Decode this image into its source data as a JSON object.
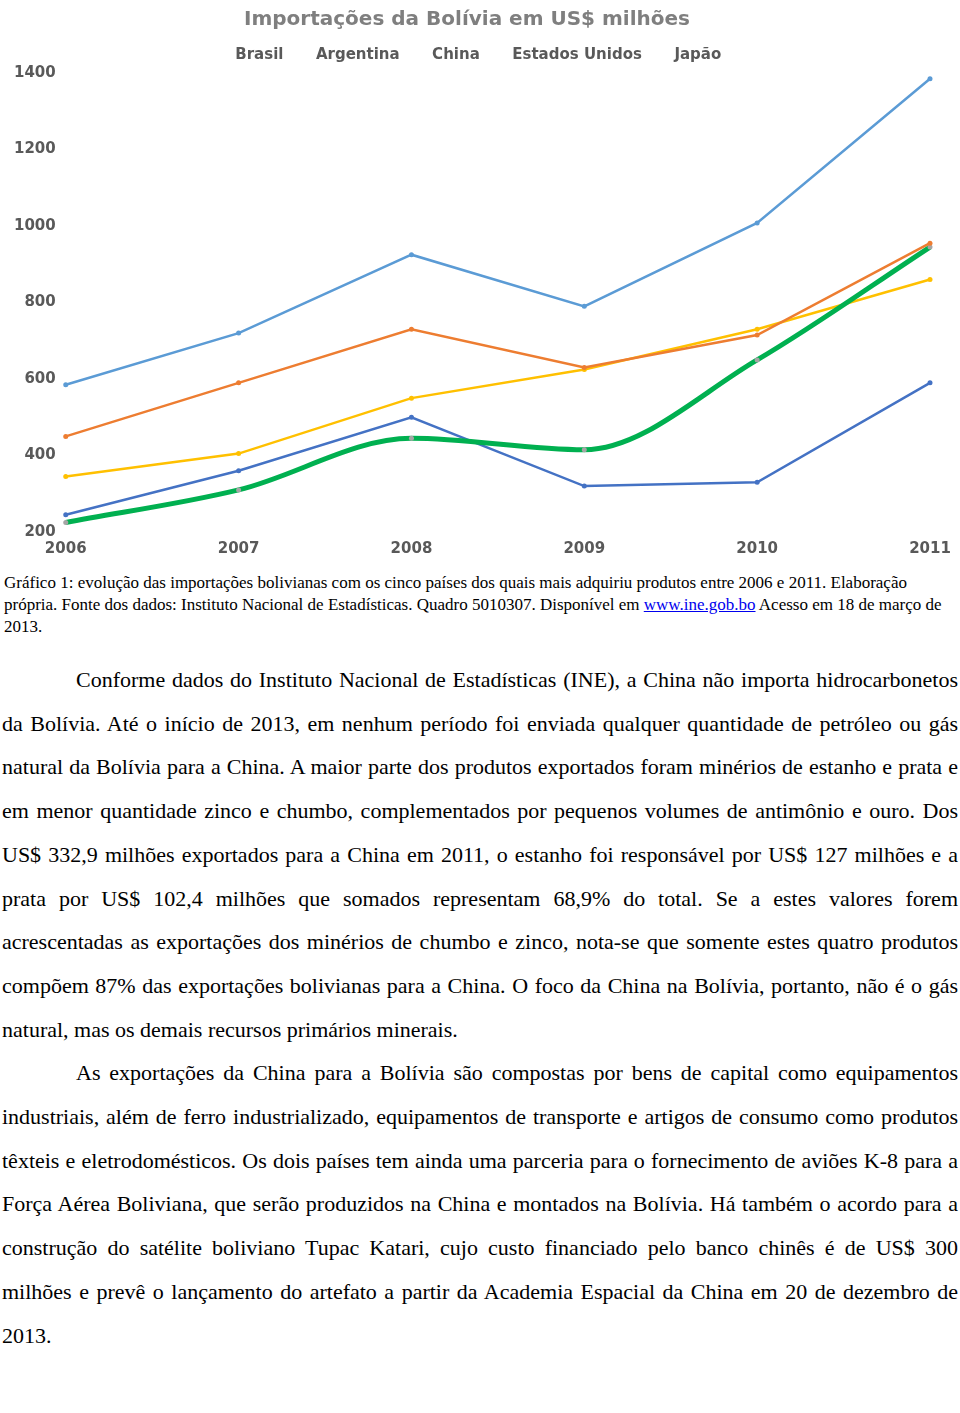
{
  "chart_data": {
    "type": "line",
    "title": "Importações da Bolívia em US$ milhões",
    "categories": [
      "2006",
      "2007",
      "2008",
      "2009",
      "2010",
      "2011"
    ],
    "series": [
      {
        "name": "Brasil",
        "color": "#5b9bd5",
        "values": [
          585,
          720,
          925,
          790,
          1008,
          1385
        ]
      },
      {
        "name": "Argentina",
        "color": "#ed7d31",
        "values": [
          450,
          590,
          730,
          630,
          715,
          955
        ]
      },
      {
        "name": "China",
        "color": "#00b050",
        "line_style": "smooth",
        "values": [
          225,
          310,
          445,
          415,
          650,
          945
        ]
      },
      {
        "name": "Estados Unidos",
        "color": "#ffc000",
        "values": [
          345,
          405,
          550,
          625,
          730,
          860
        ]
      },
      {
        "name": "Japão",
        "color": "#4472c4",
        "values": [
          245,
          360,
          500,
          320,
          330,
          590
        ]
      }
    ],
    "ylim": [
      200,
      1400
    ],
    "yticks": [
      200,
      400,
      600,
      800,
      1000,
      1200,
      1400
    ],
    "grid": false,
    "legend": "top"
  },
  "caption": {
    "text_before": "Gráfico 1: evolução das importações bolivianas com os cinco países dos quais mais adquiriu produtos entre 2006 e 2011. Elaboração própria. Fonte dos dados: Instituto Nacional de Estadísticas. Quadro 5010307. Disponível em ",
    "link": "www.ine.gob.bo",
    "text_after": " Acesso em 18 de março de 2013."
  },
  "paragraphs": [
    "Conforme dados do Instituto Nacional de Estadísticas (INE), a China não importa hidrocarbonetos da Bolívia. Até o início de 2013, em nenhum período foi enviada qualquer quantidade de petróleo ou gás natural da Bolívia para a China. A maior parte dos produtos exportados foram minérios de estanho e prata e em menor quantidade zinco e chumbo, complementados por pequenos volumes de antimônio e ouro. Dos US$ 332,9 milhões exportados para a China em 2011, o estanho foi responsável por US$ 127 milhões e a prata por US$ 102,4 milhões que somados representam 68,9% do total. Se a estes valores forem acrescentadas as exportações dos minérios de chumbo e zinco, nota-se que somente estes quatro produtos compõem 87% das exportações bolivianas para a China. O foco da China na Bolívia, portanto, não é o gás natural, mas os demais recursos primários minerais.",
    "As exportações da China para a Bolívia são compostas por bens de capital como equipamentos industriais, além de ferro industrializado, equipamentos de transporte e artigos de consumo como produtos têxteis e eletrodomésticos. Os dois países tem ainda uma parceria para o fornecimento de aviões K-8 para a Força Aérea Boliviana, que serão produzidos na China e montados na Bolívia. Há também o acordo para a construção do satélite boliviano Tupac Katari, cujo custo financiado pelo banco chinês é de US$ 300 milhões e prevê o lançamento do artefato a partir da Academia Espacial da China em 20 de dezembro de 2013."
  ]
}
